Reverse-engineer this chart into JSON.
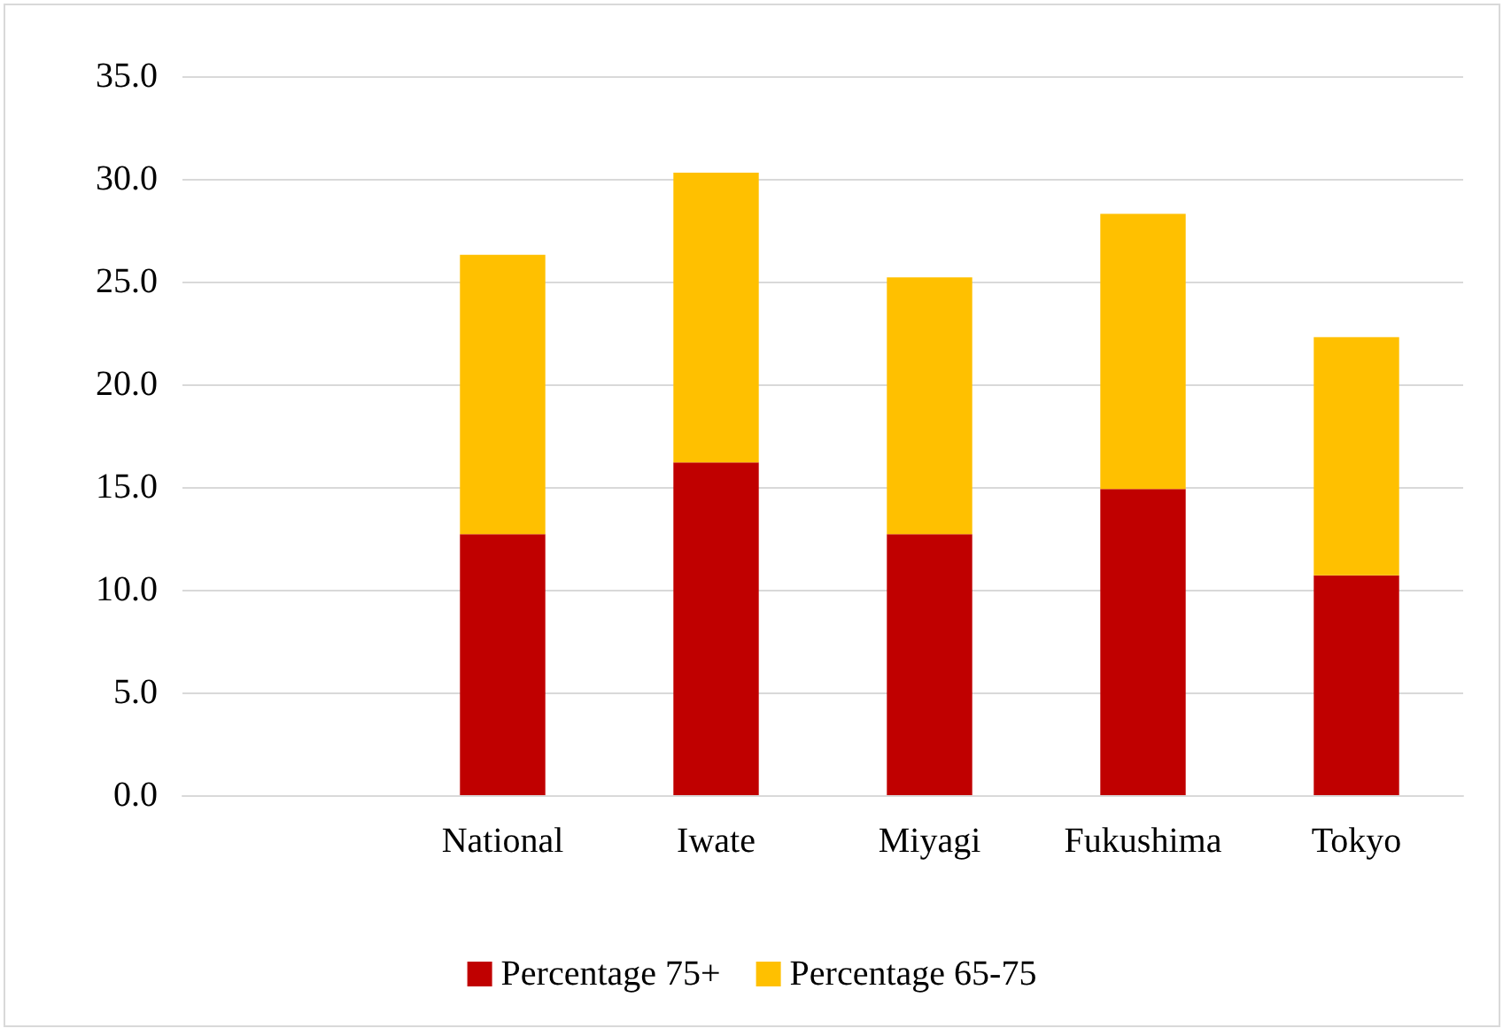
{
  "chart_data": {
    "type": "bar",
    "stacked": true,
    "categories": [
      null,
      "National",
      "Iwate",
      "Miyagi",
      "Fukushima",
      "Tokyo"
    ],
    "series": [
      {
        "name": "Percentage 75+",
        "color": "#c00000",
        "values": [
          null,
          12.7,
          16.2,
          12.7,
          14.9,
          10.7
        ]
      },
      {
        "name": "Percentage 65-75",
        "color": "#ffc000",
        "values": [
          null,
          13.6,
          14.1,
          12.5,
          13.4,
          11.6
        ]
      }
    ],
    "ylim": [
      0,
      35
    ],
    "yticks": [
      {
        "value": 0,
        "label": "0.0"
      },
      {
        "value": 5,
        "label": "5.0"
      },
      {
        "value": 10,
        "label": "10.0"
      },
      {
        "value": 15,
        "label": "15.0"
      },
      {
        "value": 20,
        "label": "20.0"
      },
      {
        "value": 25,
        "label": "25.0"
      },
      {
        "value": 30,
        "label": "30.0"
      },
      {
        "value": 35,
        "label": "35.0"
      }
    ],
    "grid": "y",
    "legend": "bottom"
  }
}
